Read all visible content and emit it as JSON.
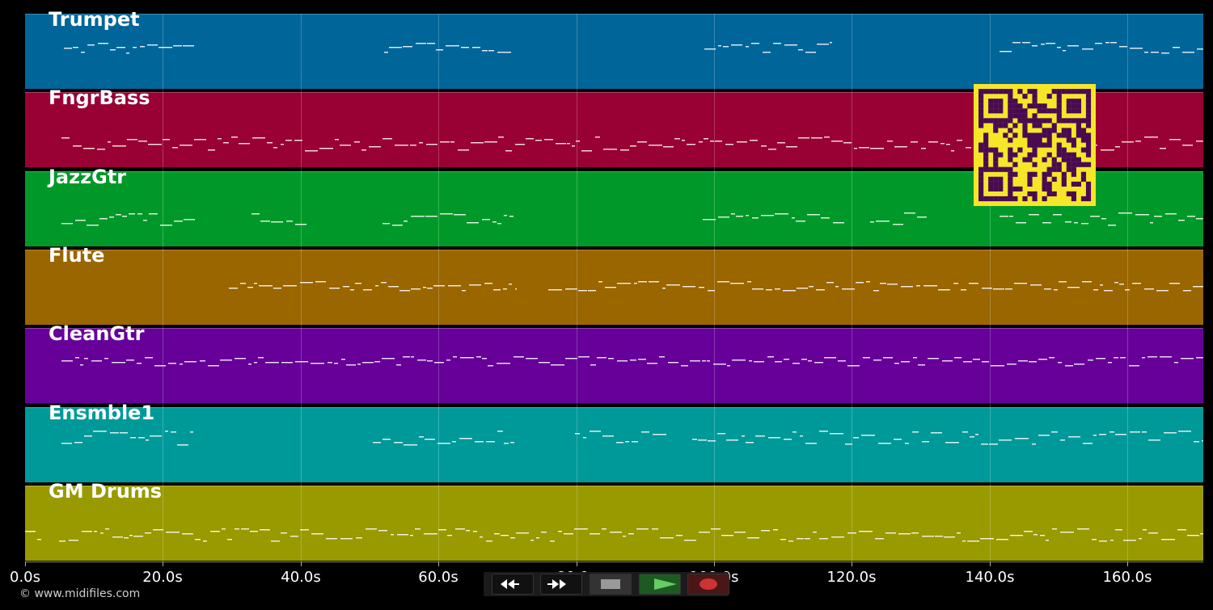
{
  "tracks": [
    {
      "name": "Trumpet",
      "color": "#006699"
    },
    {
      "name": "FngrBass",
      "color": "#990033"
    },
    {
      "name": "JazzGtr",
      "color": "#009929"
    },
    {
      "name": "Flute",
      "color": "#996600"
    },
    {
      "name": "CleanGtr",
      "color": "#660099"
    },
    {
      "name": "Ensmble1",
      "color": "#009999"
    },
    {
      "name": "GM Drums",
      "color": "#999900"
    }
  ],
  "timeline": {
    "tick_labels": [
      "0.0s",
      "20.0s",
      "40.0s",
      "60.0s",
      "80.0s",
      "100.0s",
      "120.0s",
      "140.0s",
      "160.0s"
    ],
    "tick_seconds": [
      0,
      20,
      40,
      60,
      80,
      100,
      120,
      140,
      160
    ],
    "max_seconds": 171
  },
  "transport": {
    "buttons": [
      {
        "name": "rewind-button",
        "icon": "rewind-icon"
      },
      {
        "name": "fast-forward-button",
        "icon": "fast-forward-icon"
      },
      {
        "name": "stop-button",
        "icon": "stop-icon"
      },
      {
        "name": "play-button",
        "icon": "play-icon",
        "color": "#55cc55"
      },
      {
        "name": "record-button",
        "icon": "record-icon",
        "color": "#cc3333"
      }
    ]
  },
  "footer": {
    "copyright": "© www.midifiles.com"
  },
  "qr_code": {
    "icon": "qr-code-icon",
    "color": "#f5e62a"
  }
}
